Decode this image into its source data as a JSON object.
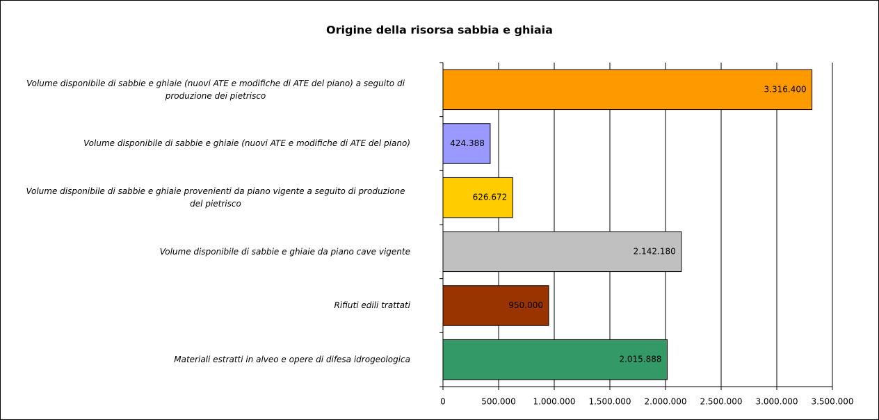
{
  "chart_data": {
    "type": "barh",
    "title": "Origine della risorsa sabbia e ghiaia",
    "categories": [
      "Volume disponibile di sabbie e ghiaie (nuovi ATE e modifiche di ATE del piano) a seguito di produzione dei pietrisco",
      "Volume disponibile di sabbie e ghiaie (nuovi ATE e modifiche di ATE del piano)",
      "Volume disponibile di sabbie e ghiaie provenienti da piano vigente a seguito di produzione del pietrisco",
      "Volume disponibile di sabbie e ghiaie da piano cave vigente",
      "Rifiuti edili trattati",
      "Materiali estratti in alveo e opere di difesa idrogeologica"
    ],
    "values": [
      3316400,
      424388,
      626672,
      2142180,
      950000,
      2015888
    ],
    "value_labels": [
      "3.316.400",
      "424.388",
      "626.672",
      "2.142.180",
      "950.000",
      "2.015.888"
    ],
    "colors": [
      "#ff9900",
      "#9999ff",
      "#ffcc00",
      "#c0c0c0",
      "#993300",
      "#339966"
    ],
    "xlim": [
      0,
      3500000
    ],
    "xticks": [
      0,
      {
        "value": 500000,
        "label": "500.000"
      },
      {
        "value": 1000000,
        "label": "1.000.000"
      },
      {
        "value": 1500000,
        "label": "1.500.000"
      },
      {
        "value": 2000000,
        "label": "2.000.000"
      },
      {
        "value": 2500000,
        "label": "2.500.000"
      },
      {
        "value": 3000000,
        "label": "3.000.000"
      },
      {
        "value": 3500000,
        "label": "3.500.000"
      }
    ],
    "grid": true
  }
}
